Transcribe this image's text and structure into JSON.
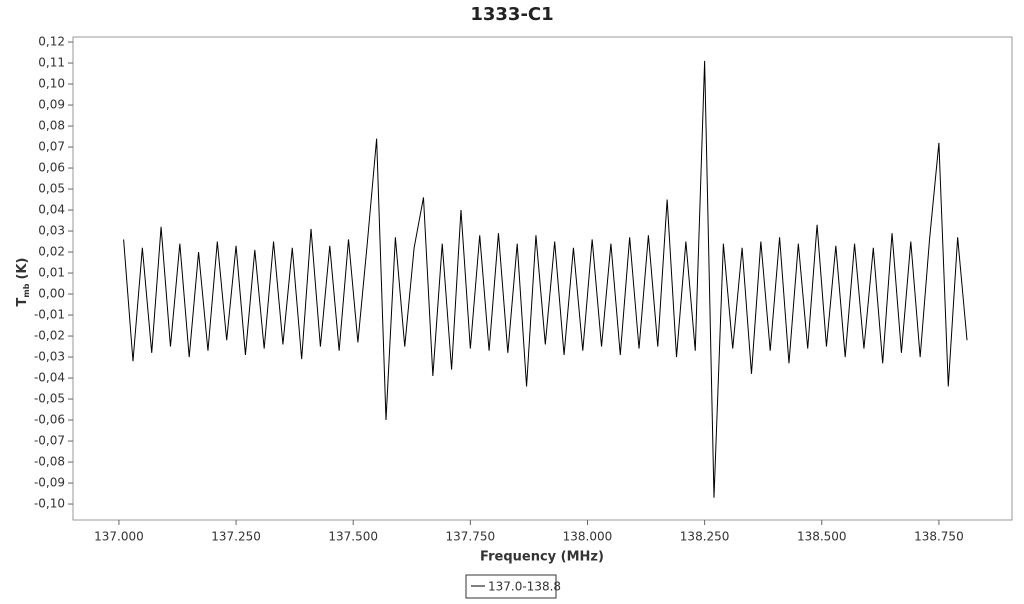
{
  "chart_data": {
    "type": "line",
    "title": "1333-C1",
    "x_label": "Frequency (MHz)",
    "y_label": {
      "main": "T",
      "sub": "mb",
      "unit": "(K)"
    },
    "xlim": [
      136.902,
      138.906
    ],
    "ylim": [
      -0.1076,
      0.1224
    ],
    "xticks": [
      {
        "value": 137.0,
        "label": "137.000"
      },
      {
        "value": 137.25,
        "label": "137.250"
      },
      {
        "value": 137.5,
        "label": "137.500"
      },
      {
        "value": 137.75,
        "label": "137.750"
      },
      {
        "value": 138.0,
        "label": "138.000"
      },
      {
        "value": 138.25,
        "label": "138.250"
      },
      {
        "value": 138.5,
        "label": "138.500"
      },
      {
        "value": 138.75,
        "label": "138.750"
      }
    ],
    "yticks": [
      {
        "value": 0.12,
        "label": "0,12"
      },
      {
        "value": 0.11,
        "label": "0,11"
      },
      {
        "value": 0.1,
        "label": "0,10"
      },
      {
        "value": 0.09,
        "label": "0,09"
      },
      {
        "value": 0.08,
        "label": "0,08"
      },
      {
        "value": 0.07,
        "label": "0,07"
      },
      {
        "value": 0.06,
        "label": "0,06"
      },
      {
        "value": 0.05,
        "label": "0,05"
      },
      {
        "value": 0.04,
        "label": "0,04"
      },
      {
        "value": 0.03,
        "label": "0,03"
      },
      {
        "value": 0.02,
        "label": "0,02"
      },
      {
        "value": 0.01,
        "label": "0,01"
      },
      {
        "value": 0,
        "label": "0,00"
      },
      {
        "value": -0.01,
        "label": "-0,01"
      },
      {
        "value": -0.02,
        "label": "-0,02"
      },
      {
        "value": -0.03,
        "label": "-0,03"
      },
      {
        "value": -0.04,
        "label": "-0,04"
      },
      {
        "value": -0.05,
        "label": "-0,05"
      },
      {
        "value": -0.06,
        "label": "-0,06"
      },
      {
        "value": -0.07,
        "label": "-0,07"
      },
      {
        "value": -0.08,
        "label": "-0,08"
      },
      {
        "value": -0.09,
        "label": "-0,09"
      },
      {
        "value": -0.1,
        "label": "-0,10"
      }
    ],
    "x": [
      137.01,
      137.03,
      137.05,
      137.07,
      137.09,
      137.11,
      137.13,
      137.15,
      137.17,
      137.19,
      137.21,
      137.23,
      137.25,
      137.27,
      137.29,
      137.31,
      137.33,
      137.35,
      137.37,
      137.39,
      137.41,
      137.43,
      137.45,
      137.47,
      137.49,
      137.51,
      137.53,
      137.55,
      137.57,
      137.59,
      137.61,
      137.63,
      137.65,
      137.67,
      137.69,
      137.71,
      137.73,
      137.75,
      137.77,
      137.79,
      137.81,
      137.83,
      137.85,
      137.87,
      137.89,
      137.91,
      137.93,
      137.95,
      137.97,
      137.99,
      138.01,
      138.03,
      138.05,
      138.07,
      138.09,
      138.11,
      138.13,
      138.15,
      138.17,
      138.19,
      138.21,
      138.23,
      138.25,
      138.27,
      138.29,
      138.31,
      138.33,
      138.35,
      138.37,
      138.39,
      138.41,
      138.43,
      138.45,
      138.47,
      138.49,
      138.51,
      138.53,
      138.55,
      138.57,
      138.59,
      138.61,
      138.63,
      138.65,
      138.67,
      138.69,
      138.71,
      138.73,
      138.75,
      138.77,
      138.79,
      138.81
    ],
    "series": [
      {
        "name": "137.0-138.8",
        "color": "#000000",
        "values": [
          0.026,
          -0.032,
          0.022,
          -0.028,
          0.032,
          -0.025,
          0.024,
          -0.03,
          0.02,
          -0.027,
          0.025,
          -0.022,
          0.023,
          -0.029,
          0.021,
          -0.026,
          0.025,
          -0.024,
          0.022,
          -0.031,
          0.031,
          -0.025,
          0.023,
          -0.027,
          0.026,
          -0.023,
          0.024,
          0.074,
          -0.06,
          0.027,
          -0.025,
          0.022,
          0.046,
          -0.039,
          0.024,
          -0.036,
          0.04,
          -0.026,
          0.028,
          -0.027,
          0.029,
          -0.028,
          0.024,
          -0.044,
          0.028,
          -0.024,
          0.025,
          -0.029,
          0.022,
          -0.027,
          0.026,
          -0.025,
          0.024,
          -0.029,
          0.027,
          -0.026,
          0.028,
          -0.025,
          0.045,
          -0.03,
          0.025,
          -0.027,
          0.111,
          -0.097,
          0.024,
          -0.026,
          0.022,
          -0.038,
          0.025,
          -0.027,
          0.027,
          -0.033,
          0.024,
          -0.026,
          0.033,
          -0.025,
          0.023,
          -0.03,
          0.024,
          -0.026,
          0.022,
          -0.033,
          0.029,
          -0.028,
          0.025,
          -0.03,
          0.026,
          0.072,
          -0.044,
          0.027,
          -0.022
        ]
      }
    ]
  }
}
